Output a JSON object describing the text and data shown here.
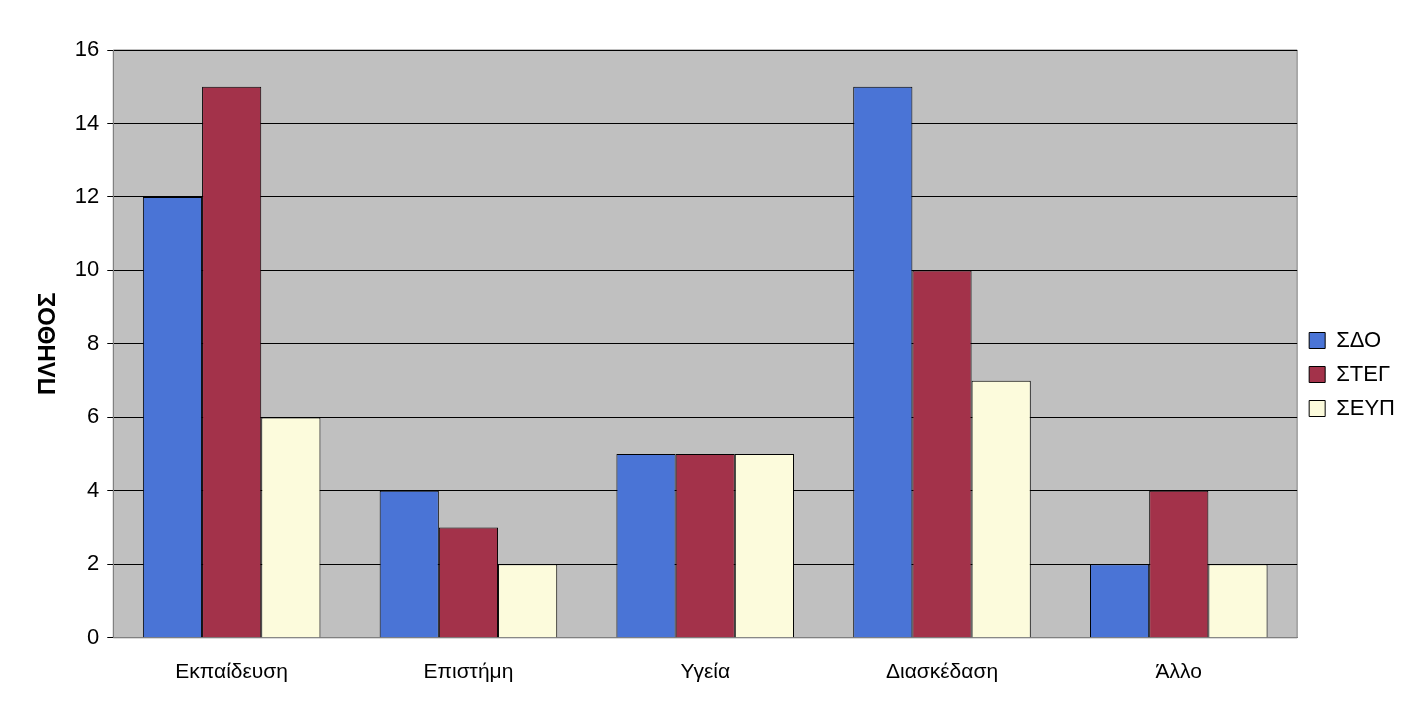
{
  "chart_data": {
    "type": "bar",
    "ylabel": "ΠΛΗΘΟΣ",
    "categories": [
      "Εκπαίδευση",
      "Επιστήμη",
      "Υγεία",
      "Διασκέδαση",
      "Άλλο"
    ],
    "series": [
      {
        "name": "ΣΔΟ",
        "color": "#4a74d6",
        "values": [
          12,
          4,
          5,
          15,
          2
        ]
      },
      {
        "name": "ΣΤΕΓ",
        "color": "#a3324a",
        "values": [
          15,
          3,
          5,
          10,
          4
        ]
      },
      {
        "name": "ΣΕΥΠ",
        "color": "#fcfbdc",
        "values": [
          6,
          2,
          5,
          7,
          2
        ]
      }
    ],
    "ylim": [
      0,
      16
    ],
    "yticks": [
      0,
      2,
      4,
      6,
      8,
      10,
      12,
      14,
      16
    ],
    "grid": "y",
    "legend": "right"
  }
}
